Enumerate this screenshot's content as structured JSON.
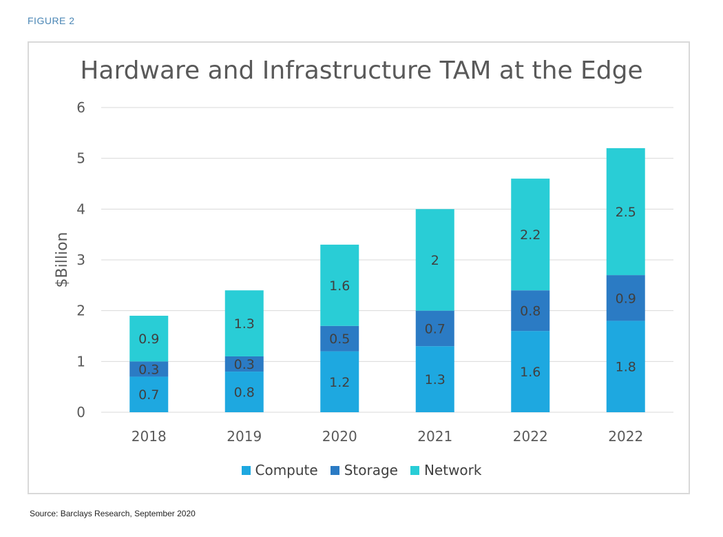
{
  "figure_label": "FIGURE 2",
  "source": "Source: Barclays Research, September 2020",
  "chart_data": {
    "type": "bar",
    "stacked": true,
    "title": "Hardware and Infrastructure TAM at the Edge",
    "xlabel": "",
    "ylabel": "$Billion",
    "ylim": [
      0,
      6
    ],
    "yticks": [
      0,
      1,
      2,
      3,
      4,
      5,
      6
    ],
    "grid": true,
    "legend_position": "bottom",
    "categories": [
      "2018",
      "2019",
      "2020",
      "2021",
      "2022",
      "2022"
    ],
    "series": [
      {
        "name": "Compute",
        "color": "#1ea8e0",
        "values": [
          0.7,
          0.8,
          1.2,
          1.3,
          1.6,
          1.8
        ],
        "labels": [
          "0.7",
          "0.8",
          "1.2",
          "1.3",
          "1.6",
          "1.8"
        ]
      },
      {
        "name": "Storage",
        "color": "#2b7bc4",
        "values": [
          0.3,
          0.3,
          0.5,
          0.7,
          0.8,
          0.9
        ],
        "labels": [
          "0.3",
          "0.3",
          "0.5",
          "0.7",
          "0.8",
          "0.9"
        ]
      },
      {
        "name": "Network",
        "color": "#29cdd6",
        "values": [
          0.9,
          1.3,
          1.6,
          2.0,
          2.2,
          2.5
        ],
        "labels": [
          "0.9",
          "1.3",
          "1.6",
          "2",
          "2.2",
          "2.5"
        ]
      }
    ]
  }
}
